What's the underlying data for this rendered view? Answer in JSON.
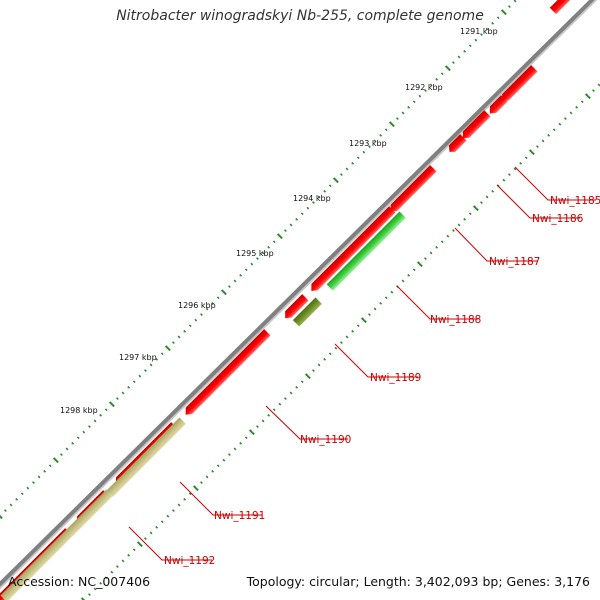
{
  "title": "Nitrobacter winogradskyi Nb-255, complete genome",
  "accession": "Accession: NC_007406",
  "summary": "Topology: circular; Length: 3,402,093 bp; Genes: 3,176",
  "colors": {
    "backbone": "#8c8c8c",
    "cds": "#ff0000",
    "rna_green": "#33cc33",
    "olive": "#6b8e23",
    "khaki": "#bdb76b",
    "tick": "#2e8b2e",
    "label": "#cc0000"
  },
  "ruler": [
    {
      "label": "1291 kbp",
      "kbp": 1291
    },
    {
      "label": "1292 kbp",
      "kbp": 1292
    },
    {
      "label": "1293 kbp",
      "kbp": 1293
    },
    {
      "label": "1294 kbp",
      "kbp": 1294
    },
    {
      "label": "1295 kbp",
      "kbp": 1295
    },
    {
      "label": "1296 kbp",
      "kbp": 1296
    },
    {
      "label": "1297 kbp",
      "kbp": 1297
    },
    {
      "label": "1298 kbp",
      "kbp": 1298
    }
  ],
  "gene_labels": [
    {
      "label": "Nwi_1185"
    },
    {
      "label": "Nwi_1186"
    },
    {
      "label": "Nwi_1187"
    },
    {
      "label": "Nwi_1188"
    },
    {
      "label": "Nwi_1189"
    },
    {
      "label": "Nwi_1190"
    },
    {
      "label": "Nwi_1191"
    },
    {
      "label": "Nwi_1192"
    }
  ]
}
